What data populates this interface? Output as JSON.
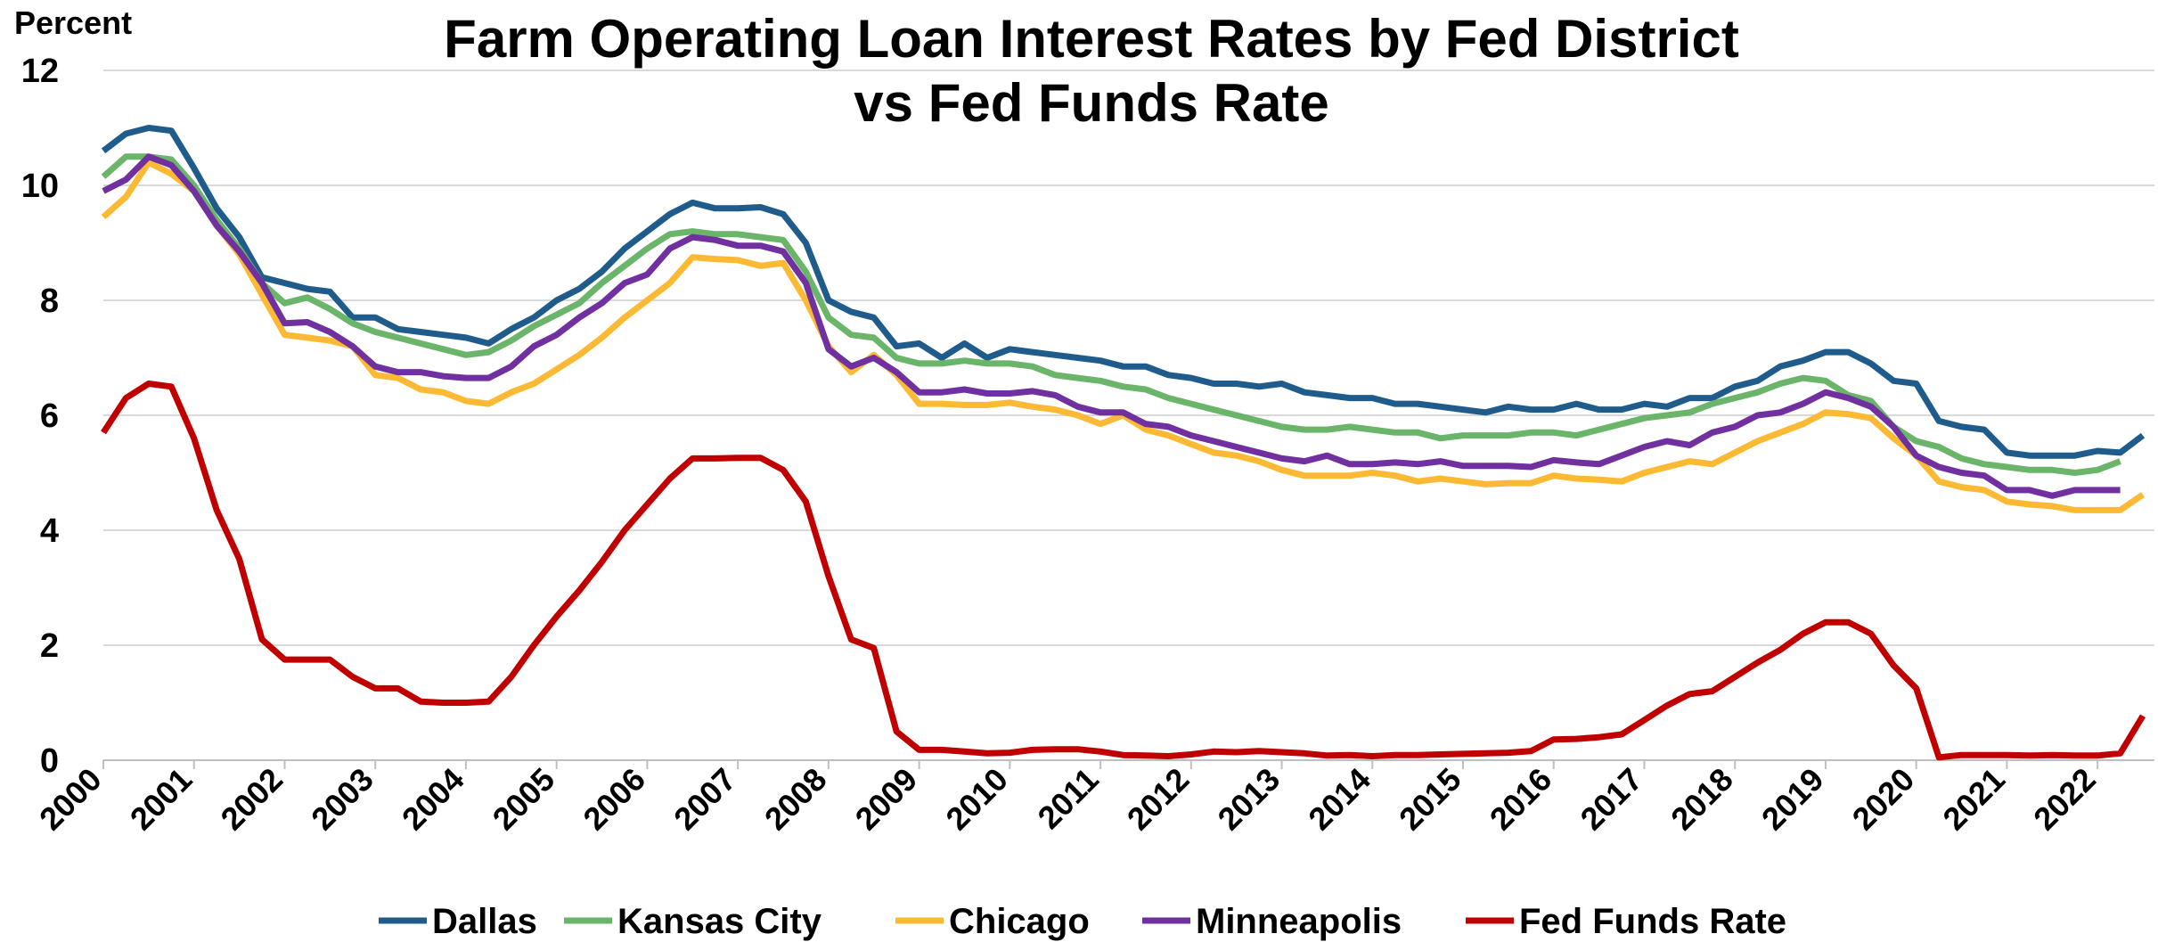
{
  "chart_data": {
    "type": "line",
    "title": "Farm Operating Loan Interest Rates by Fed District",
    "subtitle": "vs Fed Funds Rate",
    "y_label": "Percent",
    "x": [
      2000,
      2000.25,
      2000.5,
      2000.75,
      2001,
      2001.25,
      2001.5,
      2001.75,
      2002,
      2002.25,
      2002.5,
      2002.75,
      2003,
      2003.25,
      2003.5,
      2003.75,
      2004,
      2004.25,
      2004.5,
      2004.75,
      2005,
      2005.25,
      2005.5,
      2005.75,
      2006,
      2006.25,
      2006.5,
      2006.75,
      2007,
      2007.25,
      2007.5,
      2007.75,
      2008,
      2008.25,
      2008.5,
      2008.75,
      2009,
      2009.25,
      2009.5,
      2009.75,
      2010,
      2010.25,
      2010.5,
      2010.75,
      2011,
      2011.25,
      2011.5,
      2011.75,
      2012,
      2012.25,
      2012.5,
      2012.75,
      2013,
      2013.25,
      2013.5,
      2013.75,
      2014,
      2014.25,
      2014.5,
      2014.75,
      2015,
      2015.25,
      2015.5,
      2015.75,
      2016,
      2016.25,
      2016.5,
      2016.75,
      2017,
      2017.25,
      2017.5,
      2017.75,
      2018,
      2018.25,
      2018.5,
      2018.75,
      2019,
      2019.25,
      2019.5,
      2019.75,
      2020,
      2020.25,
      2020.5,
      2020.75,
      2021,
      2021.25,
      2021.5,
      2021.75,
      2022,
      2022.25,
      2022.5
    ],
    "series": [
      {
        "name": "Dallas",
        "color": "#1f5c8b",
        "values": [
          10.6,
          10.9,
          11.0,
          10.95,
          10.3,
          9.6,
          9.1,
          8.4,
          8.3,
          8.2,
          8.15,
          7.7,
          7.7,
          7.5,
          7.45,
          7.4,
          7.35,
          7.25,
          7.5,
          7.7,
          8.0,
          8.2,
          8.5,
          8.9,
          9.2,
          9.5,
          9.7,
          9.6,
          9.6,
          9.62,
          9.5,
          9.0,
          8.0,
          7.8,
          7.7,
          7.2,
          7.25,
          7.0,
          7.25,
          7.0,
          7.15,
          7.1,
          7.05,
          7.0,
          6.95,
          6.85,
          6.85,
          6.7,
          6.65,
          6.55,
          6.55,
          6.5,
          6.55,
          6.4,
          6.35,
          6.3,
          6.3,
          6.2,
          6.2,
          6.15,
          6.1,
          6.05,
          6.15,
          6.1,
          6.1,
          6.2,
          6.1,
          6.1,
          6.2,
          6.15,
          6.3,
          6.3,
          6.5,
          6.6,
          6.85,
          6.95,
          7.1,
          7.1,
          6.9,
          6.6,
          6.55,
          5.9,
          5.8,
          5.75,
          5.35,
          5.3,
          5.3,
          5.3,
          5.38,
          5.35,
          5.65
        ]
      },
      {
        "name": "Kansas City",
        "color": "#6ab56a",
        "values": [
          10.15,
          10.5,
          10.5,
          10.45,
          10.0,
          9.4,
          8.9,
          8.3,
          7.95,
          8.05,
          7.85,
          7.6,
          7.45,
          7.35,
          7.25,
          7.15,
          7.05,
          7.1,
          7.3,
          7.55,
          7.75,
          7.95,
          8.3,
          8.6,
          8.9,
          9.15,
          9.2,
          9.15,
          9.15,
          9.1,
          9.05,
          8.5,
          7.7,
          7.4,
          7.35,
          7.0,
          6.9,
          6.9,
          6.95,
          6.9,
          6.9,
          6.85,
          6.7,
          6.65,
          6.6,
          6.5,
          6.45,
          6.3,
          6.2,
          6.1,
          6.0,
          5.9,
          5.8,
          5.75,
          5.75,
          5.8,
          5.75,
          5.7,
          5.7,
          5.6,
          5.65,
          5.65,
          5.65,
          5.7,
          5.7,
          5.65,
          5.75,
          5.85,
          5.95,
          6.0,
          6.05,
          6.2,
          6.3,
          6.4,
          6.55,
          6.65,
          6.6,
          6.35,
          6.25,
          5.8,
          5.55,
          5.45,
          5.25,
          5.15,
          5.1,
          5.05,
          5.05,
          5.0,
          5.05,
          5.2,
          null
        ]
      },
      {
        "name": "Chicago",
        "color": "#fbb934",
        "values": [
          9.45,
          9.8,
          10.4,
          10.2,
          9.9,
          9.3,
          8.8,
          8.1,
          7.4,
          7.35,
          7.3,
          7.2,
          6.7,
          6.65,
          6.45,
          6.4,
          6.25,
          6.2,
          6.4,
          6.55,
          6.8,
          7.05,
          7.35,
          7.7,
          8.0,
          8.3,
          8.75,
          8.72,
          8.7,
          8.6,
          8.65,
          8.0,
          7.2,
          6.75,
          7.05,
          6.7,
          6.2,
          6.2,
          6.18,
          6.18,
          6.22,
          6.15,
          6.1,
          6.0,
          5.85,
          6.0,
          5.75,
          5.65,
          5.5,
          5.35,
          5.3,
          5.2,
          5.05,
          4.95,
          4.95,
          4.95,
          5.0,
          4.95,
          4.85,
          4.9,
          4.85,
          4.8,
          4.82,
          4.82,
          4.95,
          4.9,
          4.88,
          4.85,
          5.0,
          5.1,
          5.2,
          5.15,
          5.35,
          5.55,
          5.7,
          5.85,
          6.05,
          6.02,
          5.95,
          5.6,
          5.3,
          4.85,
          4.75,
          4.7,
          4.5,
          4.45,
          4.42,
          4.35,
          4.35,
          4.35,
          4.62
        ]
      },
      {
        "name": "Minneapolis",
        "color": "#7030a0",
        "values": [
          9.9,
          10.1,
          10.5,
          10.35,
          9.9,
          9.3,
          8.85,
          8.3,
          7.6,
          7.62,
          7.45,
          7.2,
          6.85,
          6.75,
          6.75,
          6.68,
          6.65,
          6.65,
          6.85,
          7.2,
          7.4,
          7.7,
          7.95,
          8.3,
          8.45,
          8.9,
          9.1,
          9.05,
          8.95,
          8.95,
          8.85,
          8.3,
          7.15,
          6.85,
          7.0,
          6.75,
          6.4,
          6.4,
          6.45,
          6.38,
          6.38,
          6.42,
          6.35,
          6.15,
          6.05,
          6.05,
          5.85,
          5.8,
          5.65,
          5.55,
          5.45,
          5.35,
          5.25,
          5.2,
          5.3,
          5.15,
          5.15,
          5.18,
          5.15,
          5.2,
          5.12,
          5.12,
          5.12,
          5.1,
          5.22,
          5.18,
          5.15,
          5.3,
          5.45,
          5.55,
          5.48,
          5.7,
          5.8,
          6.0,
          6.05,
          6.2,
          6.4,
          6.3,
          6.15,
          5.8,
          5.3,
          5.1,
          5.0,
          4.95,
          4.7,
          4.7,
          4.6,
          4.7,
          4.7,
          4.7,
          null
        ]
      },
      {
        "name": "Fed Funds Rate",
        "color": "#c00000",
        "values": [
          5.7,
          6.3,
          6.55,
          6.5,
          5.6,
          4.35,
          3.5,
          2.1,
          1.75,
          1.75,
          1.75,
          1.45,
          1.25,
          1.25,
          1.02,
          1.0,
          1.0,
          1.02,
          1.45,
          2.0,
          2.5,
          2.95,
          3.45,
          4.0,
          4.45,
          4.9,
          5.25,
          5.25,
          5.26,
          5.26,
          5.05,
          4.5,
          3.2,
          2.1,
          1.95,
          0.5,
          0.18,
          0.18,
          0.15,
          0.12,
          0.13,
          0.18,
          0.19,
          0.19,
          0.15,
          0.09,
          0.08,
          0.07,
          0.1,
          0.15,
          0.14,
          0.16,
          0.14,
          0.12,
          0.08,
          0.09,
          0.07,
          0.09,
          0.09,
          0.1,
          0.11,
          0.12,
          0.13,
          0.16,
          0.36,
          0.37,
          0.4,
          0.45,
          0.7,
          0.95,
          1.15,
          1.2,
          1.45,
          1.7,
          1.92,
          2.2,
          2.4,
          2.4,
          2.2,
          1.65,
          1.25,
          0.05,
          0.09,
          0.09,
          0.09,
          0.08,
          0.09,
          0.08,
          0.08,
          0.12,
          0.77
        ]
      }
    ],
    "xlim": [
      2000,
      2022.5
    ],
    "xticks": [
      2000,
      2001,
      2002,
      2003,
      2004,
      2005,
      2006,
      2007,
      2008,
      2009,
      2010,
      2011,
      2012,
      2013,
      2014,
      2015,
      2016,
      2017,
      2018,
      2019,
      2020,
      2021,
      2022
    ],
    "ylim": [
      0,
      12
    ],
    "yticks": [
      0,
      2,
      4,
      6,
      8,
      10,
      12
    ],
    "grid": true,
    "legend": "bottom"
  }
}
